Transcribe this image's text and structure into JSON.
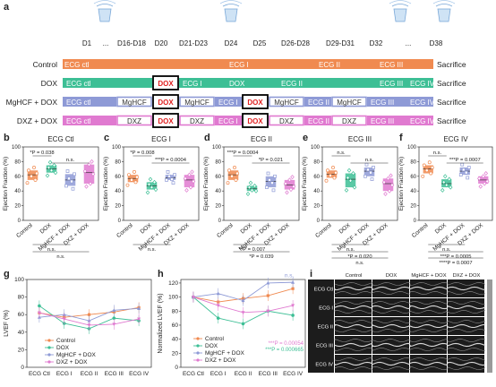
{
  "panels": {
    "a": "a",
    "b": "b",
    "c": "c",
    "d": "d",
    "e": "e",
    "f": "f",
    "g": "g",
    "h": "h",
    "i": "i"
  },
  "colors": {
    "control": "#f08a50",
    "dox": "#3dbf95",
    "mghcf": "#8e9ad6",
    "dxz": "#e07ad0",
    "box_text_color": "#333333"
  },
  "timeline": {
    "timepoints": [
      "D1",
      "...",
      "D16-D18",
      "D20",
      "D21-D23",
      "D24",
      "D25",
      "D26-D28",
      "D29-D31",
      "D32",
      "...",
      "D38"
    ],
    "groups": [
      {
        "label": "Control",
        "segments": [
          "ECG ctl",
          "",
          "ECG I",
          "ECG II",
          "ECG III",
          "ECG IV"
        ],
        "end": "Sacrifice"
      },
      {
        "label": "DOX",
        "segments": [
          "ECG ctl",
          "DOX",
          "ECG I",
          "DOX",
          "ECG II",
          "ECG III",
          "ECG IV"
        ],
        "end": "Sacrifice"
      },
      {
        "label": "MgHCF + DOX",
        "segments": [
          "ECG ctl",
          "MgHCF",
          "DOX",
          "MgHCF",
          "ECG I",
          "DOX",
          "MgHCF",
          "ECG II",
          "MgHCF",
          "ECG III",
          "ECG IV"
        ],
        "end": "Sacrifice"
      },
      {
        "label": "DXZ + DOX",
        "segments": [
          "ECG ctl",
          "DXZ",
          "DOX",
          "DXZ",
          "ECG I",
          "DOX",
          "DXZ",
          "ECG II",
          "DXZ",
          "ECG III",
          "ECG IV"
        ],
        "end": "Sacrifice"
      }
    ]
  },
  "chart_data": [
    {
      "panel": "b",
      "type": "box",
      "title": "ECG Ctl",
      "ylabel": "Ejection Fraction (%)",
      "ylim": [
        0,
        100
      ],
      "categories": [
        "Control",
        "DOX",
        "MgHCF + DOX",
        "DXZ + DOX"
      ],
      "values": [
        {
          "median": 62,
          "q1": 55,
          "q3": 68
        },
        {
          "median": 70,
          "q1": 65,
          "q3": 75
        },
        {
          "median": 55,
          "q1": 47,
          "q3": 63
        },
        {
          "median": 65,
          "q1": 50,
          "q3": 76
        }
      ],
      "annotations": [
        "*P = 0.038",
        "n.s.",
        "n.s.",
        "n.s."
      ]
    },
    {
      "panel": "c",
      "type": "box",
      "title": "ECG I",
      "ylabel": "Ejection Fraction (%)",
      "ylim": [
        0,
        100
      ],
      "categories": [
        "Control",
        "DOX",
        "MgHCF + DOX",
        "DXZ + DOX"
      ],
      "values": [
        {
          "median": 57,
          "q1": 52,
          "q3": 62
        },
        {
          "median": 47,
          "q1": 42,
          "q3": 52
        },
        {
          "median": 58,
          "q1": 55,
          "q3": 62
        },
        {
          "median": 55,
          "q1": 45,
          "q3": 62
        }
      ],
      "annotations": [
        "*P = 0.008",
        "***P = 0.0004",
        "n.s."
      ]
    },
    {
      "panel": "d",
      "type": "box",
      "title": "ECG II",
      "ylabel": "Ejection Fraction (%)",
      "ylim": [
        0,
        100
      ],
      "categories": [
        "Control",
        "DOX",
        "MgHCF + DOX",
        "DXZ + DOX"
      ],
      "values": [
        {
          "median": 62,
          "q1": 55,
          "q3": 68
        },
        {
          "median": 43,
          "q1": 40,
          "q3": 47
        },
        {
          "median": 53,
          "q1": 45,
          "q3": 60
        },
        {
          "median": 48,
          "q1": 42,
          "q3": 55
        }
      ],
      "annotations": [
        "***P = 0.0004",
        "*P = 0.021",
        "**P = 0.007",
        "*P = 0.039"
      ]
    },
    {
      "panel": "e",
      "type": "box",
      "title": "ECG III",
      "ylabel": "Ejection Fraction (%)",
      "ylim": [
        0,
        100
      ],
      "categories": [
        "Control",
        "DOX",
        "MgHCF + DOX",
        "DXZ + DOX"
      ],
      "values": [
        {
          "median": 63,
          "q1": 58,
          "q3": 68
        },
        {
          "median": 56,
          "q1": 45,
          "q3": 64
        },
        {
          "median": 67,
          "q1": 60,
          "q3": 72
        },
        {
          "median": 50,
          "q1": 40,
          "q3": 57
        }
      ],
      "annotations": [
        "n.s.",
        "n.s.",
        "n.s.",
        "*P = 0.020",
        "n.s."
      ]
    },
    {
      "panel": "f",
      "type": "box",
      "title": "ECG IV",
      "ylabel": "Ejection Fraction (%)",
      "ylim": [
        0,
        100
      ],
      "categories": [
        "Control",
        "DOX",
        "MgHCF + DOX",
        "DXZ + DOX"
      ],
      "values": [
        {
          "median": 70,
          "q1": 64,
          "q3": 75
        },
        {
          "median": 50,
          "q1": 45,
          "q3": 56
        },
        {
          "median": 67,
          "q1": 62,
          "q3": 72
        },
        {
          "median": 55,
          "q1": 50,
          "q3": 60
        }
      ],
      "annotations": [
        "n.s.",
        "***P = 0.0007",
        "n.s.",
        "***P = 0.0005",
        "****P = 0.0007"
      ]
    },
    {
      "panel": "g",
      "type": "line",
      "ylabel": "LVEF (%)",
      "ylim": [
        0,
        100
      ],
      "yticks": [
        0,
        20,
        40,
        60,
        80,
        100
      ],
      "categories": [
        "ECG Ctl",
        "ECG I",
        "ECG II",
        "ECG III",
        "ECG IV"
      ],
      "series": [
        {
          "name": "Control",
          "values": [
            62,
            57,
            60,
            63,
            68
          ]
        },
        {
          "name": "DOX",
          "values": [
            70,
            50,
            44,
            56,
            53
          ]
        },
        {
          "name": "MgHCF + DOX",
          "values": [
            57,
            60,
            53,
            65,
            67
          ]
        },
        {
          "name": "DXZ + DOX",
          "values": [
            62,
            55,
            48,
            49,
            55
          ]
        }
      ]
    },
    {
      "panel": "h",
      "type": "line",
      "ylabel": "Normalized LVEF (%)",
      "ylim": [
        0,
        125
      ],
      "yticks": [
        0,
        20,
        40,
        60,
        80,
        100,
        120
      ],
      "categories": [
        "ECG Ctl",
        "ECG I",
        "ECG II",
        "ECG III",
        "ECG IV"
      ],
      "series": [
        {
          "name": "Control",
          "values": [
            100,
            93,
            98,
            102,
            112
          ]
        },
        {
          "name": "DOX",
          "values": [
            100,
            70,
            62,
            80,
            74
          ]
        },
        {
          "name": "MgHCF + DOX",
          "values": [
            100,
            105,
            95,
            120,
            121
          ]
        },
        {
          "name": "DXZ + DOX",
          "values": [
            100,
            88,
            78,
            80,
            88
          ]
        }
      ],
      "annotations": [
        "n.s.",
        "***P = 0.00054",
        "***P = 0.000665"
      ]
    },
    {
      "panel": "i",
      "type": "image-grid",
      "columns": [
        "Control",
        "DOX",
        "MgHCF + DOX",
        "DXZ + DOX"
      ],
      "rows": [
        "ECG Ctl",
        "ECG I",
        "ECG II",
        "ECG III",
        "ECG IV"
      ]
    }
  ]
}
